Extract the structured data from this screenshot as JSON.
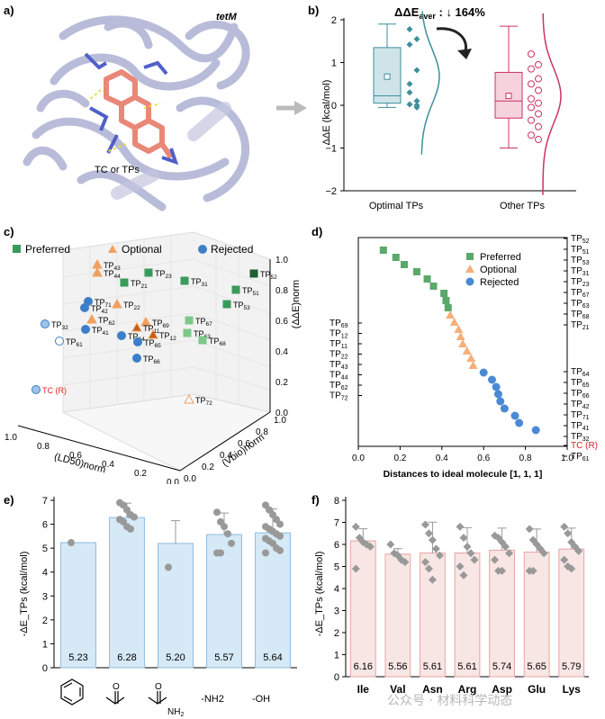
{
  "panel_a": {
    "label": "a)",
    "protein_label": "tetM",
    "ligand_label": "TC or TPs"
  },
  "panel_b": {
    "label": "b)",
    "annotation": "ΔΔE",
    "annotation_sub": "aver",
    "annotation_tail": " : ↓ 164%",
    "ylabel": "ΔΔE (kcal/mol)",
    "yticks": [
      "2",
      "1",
      "0",
      "−1",
      "−2"
    ],
    "categories": [
      "Optimal TPs",
      "Other TPs"
    ]
  },
  "panel_c": {
    "label": "c)",
    "legend": [
      "Preferred",
      "Optional",
      "Rejected"
    ],
    "zlabel": "(ΔΔE)norm",
    "ylabel": "(Vbio)norm",
    "xlabel": "(LD50)norm",
    "zticks": [
      "1.0",
      "0.8",
      "0.6",
      "0.4",
      "0.2",
      "0.0"
    ],
    "yticks": [
      "1.0",
      "0.8",
      "0.6",
      "0.4",
      "0.2",
      "0.0"
    ],
    "xticks": [
      "1.0",
      "0.8",
      "0.6",
      "0.4",
      "0.2",
      "0.0"
    ],
    "points": [
      {
        "label": "TP52",
        "cls": "Preferred"
      },
      {
        "label": "TP51",
        "cls": "Preferred"
      },
      {
        "label": "TP53",
        "cls": "Preferred"
      },
      {
        "label": "TP31",
        "cls": "Preferred"
      },
      {
        "label": "TP23",
        "cls": "Preferred"
      },
      {
        "label": "TP21",
        "cls": "Preferred"
      },
      {
        "label": "TP67",
        "cls": "Preferred"
      },
      {
        "label": "TP63",
        "cls": "Preferred"
      },
      {
        "label": "TP68",
        "cls": "Preferred"
      },
      {
        "label": "TP43",
        "cls": "Optional"
      },
      {
        "label": "TP44",
        "cls": "Optional"
      },
      {
        "label": "TP22",
        "cls": "Optional"
      },
      {
        "label": "TP62",
        "cls": "Optional"
      },
      {
        "label": "TP69",
        "cls": "Optional"
      },
      {
        "label": "TP12",
        "cls": "Optional"
      },
      {
        "label": "TP11",
        "cls": "Optional"
      },
      {
        "label": "TP72",
        "cls": "Optional"
      },
      {
        "label": "TP71",
        "cls": "Rejected"
      },
      {
        "label": "TP42",
        "cls": "Rejected"
      },
      {
        "label": "TP41",
        "cls": "Rejected"
      },
      {
        "label": "TP32",
        "cls": "Rejected"
      },
      {
        "label": "TP61",
        "cls": "Rejected"
      },
      {
        "label": "TP64",
        "cls": "Rejected"
      },
      {
        "label": "TP65",
        "cls": "Rejected"
      },
      {
        "label": "TP66",
        "cls": "Rejected"
      },
      {
        "label": "TC (R)",
        "cls": "Rejected"
      }
    ]
  },
  "panel_d": {
    "label": "d)",
    "legend": [
      "Preferred",
      "Optional",
      "Rejected"
    ],
    "xlabel": "Distances to ideal molecule [1, 1, 1]",
    "xticks": [
      "0.0",
      "0.2",
      "0.4",
      "0.6",
      "0.8",
      "1.0"
    ],
    "right_labels": [
      "TP52",
      "TP51",
      "TP53",
      "TP31",
      "TP23",
      "TP67",
      "TP63",
      "TP68",
      "TP21",
      "TP64",
      "TP65",
      "TP66",
      "TP42",
      "TP71",
      "TP41",
      "TP32",
      "TC (R)",
      "TP61"
    ],
    "left_labels": [
      "TP69",
      "TP12",
      "TP11",
      "TP22",
      "TP43",
      "TP44",
      "TP62",
      "TP72"
    ]
  },
  "panel_e": {
    "label": "e)",
    "ylabel": "-ΔE_TPs (kcal/mol)",
    "groups": [
      "benzene",
      "ketone",
      "amide",
      "-NH2",
      "-OH"
    ],
    "xlabels_text": [
      "-NH2",
      "-OH"
    ]
  },
  "panel_f": {
    "label": "f)",
    "ylabel": "-ΔE_TPs (kcal/mol)",
    "categories": [
      "Ile",
      "Val",
      "Asn",
      "Arg",
      "Asp",
      "Glu",
      "Lys"
    ]
  },
  "watermark": "公众号 · 材料科学动态",
  "colors": {
    "preferred": "#3a9a5a",
    "preferred_light": "#7cc88a",
    "optional": "#f0a060",
    "optional_dark": "#c0601a",
    "rejected": "#3c7fc8",
    "rejected_light": "#9cc4e8",
    "teal": "#3f8e9c",
    "teal_fill": "#cfe4e8",
    "pink": "#cc3366",
    "pink_fill": "#f6d2dc",
    "bar_blue": "#d6e9f6",
    "bar_pink": "#f7e6e4",
    "diamond": "#999999",
    "protein": "#b6b9d8"
  },
  "chart_data": [
    {
      "id": "b",
      "type": "box",
      "title": "",
      "ylabel": "ΔΔE (kcal/mol)",
      "ylim": [
        -2,
        2
      ],
      "categories": [
        "Optimal TPs",
        "Other TPs"
      ],
      "series": [
        {
          "name": "Optimal TPs",
          "min": -0.05,
          "q1": 0.05,
          "median": 0.22,
          "q3": 1.35,
          "max": 1.9,
          "mean": 0.67,
          "points": [
            1.78,
            1.55,
            1.42,
            0.82,
            0.5,
            0.1,
            0.02,
            -0.05,
            0.3,
            0.0
          ]
        },
        {
          "name": "Other TPs",
          "min": -1.0,
          "q1": -0.3,
          "median": 0.1,
          "q3": 0.77,
          "max": 1.85,
          "mean": 0.22,
          "points": [
            1.2,
            0.95,
            0.85,
            0.62,
            0.5,
            0.35,
            0.15,
            0.05,
            -0.05,
            -0.2,
            -0.35,
            -0.5,
            -0.7,
            -0.8
          ]
        }
      ]
    },
    {
      "id": "d",
      "type": "scatter",
      "xlabel": "Distances to ideal molecule [1, 1, 1]",
      "xlim": [
        0,
        1.0
      ],
      "series": [
        {
          "name": "Preferred",
          "x": [
            0.12,
            0.18,
            0.22,
            0.28,
            0.33,
            0.36,
            0.41,
            0.42,
            0.43
          ]
        },
        {
          "name": "Optional",
          "x": [
            0.44,
            0.46,
            0.48,
            0.49,
            0.5,
            0.52,
            0.54,
            0.55
          ]
        },
        {
          "name": "Rejected",
          "x": [
            0.6,
            0.64,
            0.66,
            0.67,
            0.68,
            0.7,
            0.75,
            0.77,
            0.85
          ]
        }
      ]
    },
    {
      "id": "e",
      "type": "bar",
      "ylabel": "-ΔE_TPs (kcal/mol)",
      "ylim": [
        0,
        7
      ],
      "categories": [
        "benzene",
        "ketone",
        "amide",
        "-NH2",
        "-OH"
      ],
      "values": [
        5.23,
        6.28,
        5.2,
        5.57,
        5.64
      ],
      "errors": [
        0,
        0.6,
        0.95,
        0.9,
        1.0
      ],
      "points": [
        [
          5.23
        ],
        [
          6.9,
          6.8,
          6.6,
          6.4,
          6.3,
          6.2,
          6.1,
          5.9,
          5.8
        ],
        [
          4.2
        ],
        [
          6.5,
          6.1,
          5.9,
          5.6,
          5.2,
          4.8,
          4.8
        ],
        [
          6.8,
          6.6,
          6.4,
          6.2,
          6.0,
          5.9,
          5.8,
          5.7,
          5.6,
          5.5,
          5.4,
          5.3,
          5.2,
          5.0,
          4.9,
          4.8
        ]
      ],
      "data_labels": [
        "5.23",
        "6.28",
        "5.20",
        "5.57",
        "5.64"
      ]
    },
    {
      "id": "f",
      "type": "bar",
      "ylabel": "-ΔE_TPs (kcal/mol)",
      "ylim": [
        0,
        8
      ],
      "categories": [
        "Ile",
        "Val",
        "Asn",
        "Arg",
        "Asp",
        "Glu",
        "Lys"
      ],
      "values": [
        6.16,
        5.56,
        5.61,
        5.61,
        5.74,
        5.65,
        5.79
      ],
      "errors": [
        0.55,
        0.25,
        1.4,
        1.15,
        1.0,
        1.05,
        0.95
      ],
      "points": [
        [
          6.8,
          6.3,
          6.1,
          6.0,
          5.9,
          4.9
        ],
        [
          6.0,
          5.6,
          5.5,
          5.3,
          5.2
        ],
        [
          6.9,
          6.5,
          6.2,
          5.8,
          5.5,
          5.2,
          4.9,
          4.4
        ],
        [
          6.8,
          6.3,
          5.9,
          5.6,
          5.3,
          5.0,
          4.6
        ],
        [
          6.4,
          6.3,
          6.1,
          5.9,
          5.6,
          5.3,
          4.8,
          4.8
        ],
        [
          6.7,
          6.2,
          6.0,
          5.8,
          5.6,
          4.8,
          4.8
        ],
        [
          6.8,
          6.5,
          6.1,
          5.9,
          5.7,
          5.3,
          5.0,
          4.9
        ]
      ],
      "data_labels": [
        "6.16",
        "5.56",
        "5.61",
        "5.61",
        "5.74",
        "5.65",
        "5.79"
      ]
    }
  ]
}
